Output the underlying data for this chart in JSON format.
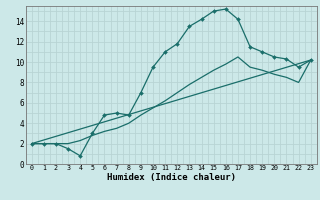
{
  "xlabel": "Humidex (Indice chaleur)",
  "bg_color": "#cce8e8",
  "grid_color": "#b8d4d4",
  "line_color": "#1a6e6a",
  "line1_x": [
    0,
    1,
    2,
    3,
    4,
    5,
    6,
    7,
    8,
    9,
    10,
    11,
    12,
    13,
    14,
    15,
    16,
    17,
    18,
    19,
    20,
    21,
    22,
    23
  ],
  "line1_y": [
    2.0,
    2.0,
    2.0,
    1.5,
    0.8,
    3.0,
    4.8,
    5.0,
    4.8,
    7.0,
    9.5,
    11.0,
    11.8,
    13.5,
    14.2,
    15.0,
    15.2,
    14.2,
    11.5,
    11.0,
    10.5,
    10.3,
    9.5,
    10.2
  ],
  "line2_x": [
    0,
    23
  ],
  "line2_y": [
    2.0,
    10.2
  ],
  "line3_x": [
    0,
    1,
    2,
    3,
    4,
    5,
    6,
    7,
    8,
    9,
    10,
    11,
    12,
    13,
    14,
    15,
    16,
    17,
    18,
    19,
    20,
    21,
    22,
    23
  ],
  "line3_y": [
    2.0,
    2.0,
    2.0,
    2.0,
    2.3,
    2.8,
    3.2,
    3.5,
    4.0,
    4.8,
    5.5,
    6.2,
    7.0,
    7.8,
    8.5,
    9.2,
    9.8,
    10.5,
    9.5,
    9.2,
    8.8,
    8.5,
    8.0,
    10.2
  ],
  "xlim_min": -0.5,
  "xlim_max": 23.5,
  "ylim_min": 0,
  "ylim_max": 15.5,
  "xtick_fontsize": 4.8,
  "ytick_fontsize": 5.5,
  "xlabel_fontsize": 6.5,
  "marker_size": 2.0,
  "linewidth": 0.9
}
